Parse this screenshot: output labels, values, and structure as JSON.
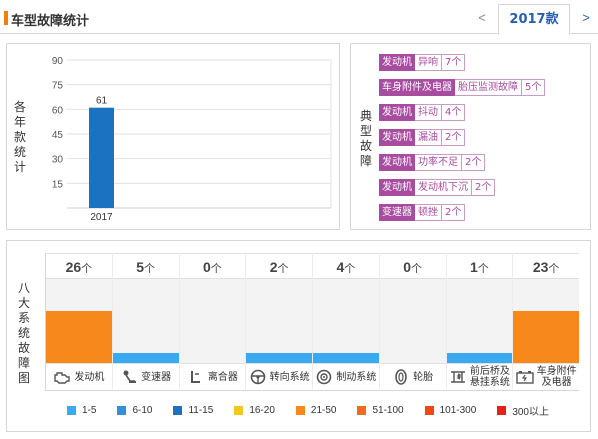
{
  "header": {
    "title": "车型故障统计",
    "prev": "<",
    "year_tab": "2017款",
    "next": ">"
  },
  "left_panel": {
    "vertical_label": [
      "各",
      "年",
      "款",
      "统",
      "计"
    ]
  },
  "chart_data": {
    "type": "bar",
    "categories": [
      "2017"
    ],
    "values": [
      61
    ],
    "ylim": [
      0,
      90
    ],
    "yticks": [
      15,
      30,
      45,
      60,
      75,
      90
    ],
    "color": "#1a72c0",
    "grid": true
  },
  "typical_faults": {
    "vertical_label": [
      "典",
      "型",
      "故",
      "障"
    ],
    "items": [
      {
        "system": "发动机",
        "desc": "异响",
        "count": "7个"
      },
      {
        "system": "车身附件及电器",
        "desc": "胎压监测故障",
        "count": "5个"
      },
      {
        "system": "发动机",
        "desc": "抖动",
        "count": "4个"
      },
      {
        "system": "发动机",
        "desc": "漏油",
        "count": "2个"
      },
      {
        "system": "发动机",
        "desc": "功率不足",
        "count": "2个"
      },
      {
        "system": "发动机",
        "desc": "发动机下沉",
        "count": "2个"
      },
      {
        "system": "变速器",
        "desc": "顿挫",
        "count": "2个"
      }
    ]
  },
  "eight_systems": {
    "vertical_label": [
      "八",
      "大",
      "系",
      "统",
      "故",
      "障",
      "图"
    ],
    "unit": "个",
    "systems": [
      {
        "name": [
          "发动机"
        ],
        "count": "26",
        "level": 0.62,
        "color": "#f7891c",
        "icon": "engine-icon"
      },
      {
        "name": [
          "变速器"
        ],
        "count": "5",
        "level": 0.12,
        "color": "#3aa9f0",
        "icon": "gear-shift-icon"
      },
      {
        "name": [
          "离合器"
        ],
        "count": "0",
        "level": 0,
        "color": "#3aa9f0",
        "icon": "clutch-icon"
      },
      {
        "name": [
          "转向系统"
        ],
        "count": "2",
        "level": 0.12,
        "color": "#3aa9f0",
        "icon": "steering-wheel-icon"
      },
      {
        "name": [
          "制动系统"
        ],
        "count": "4",
        "level": 0.12,
        "color": "#3aa9f0",
        "icon": "brake-icon"
      },
      {
        "name": [
          "轮胎"
        ],
        "count": "0",
        "level": 0,
        "color": "#3aa9f0",
        "icon": "tire-icon"
      },
      {
        "name": [
          "前后桥及",
          "悬挂系统"
        ],
        "count": "1",
        "level": 0.12,
        "color": "#3aa9f0",
        "icon": "suspension-icon"
      },
      {
        "name": [
          "车身附件",
          "及电器"
        ],
        "count": "23",
        "level": 0.62,
        "color": "#f7891c",
        "icon": "battery-icon"
      }
    ]
  },
  "legend": [
    {
      "label": "1-5",
      "color": "#3aa9f0"
    },
    {
      "label": "6-10",
      "color": "#2f8fe0"
    },
    {
      "label": "11-15",
      "color": "#1a72c0"
    },
    {
      "label": "16-20",
      "color": "#f5c71a"
    },
    {
      "label": "21-50",
      "color": "#f7891c"
    },
    {
      "label": "51-100",
      "color": "#f06a1a"
    },
    {
      "label": "101-300",
      "color": "#ec4a1a"
    },
    {
      "label": "300以上",
      "color": "#e8201c"
    }
  ]
}
